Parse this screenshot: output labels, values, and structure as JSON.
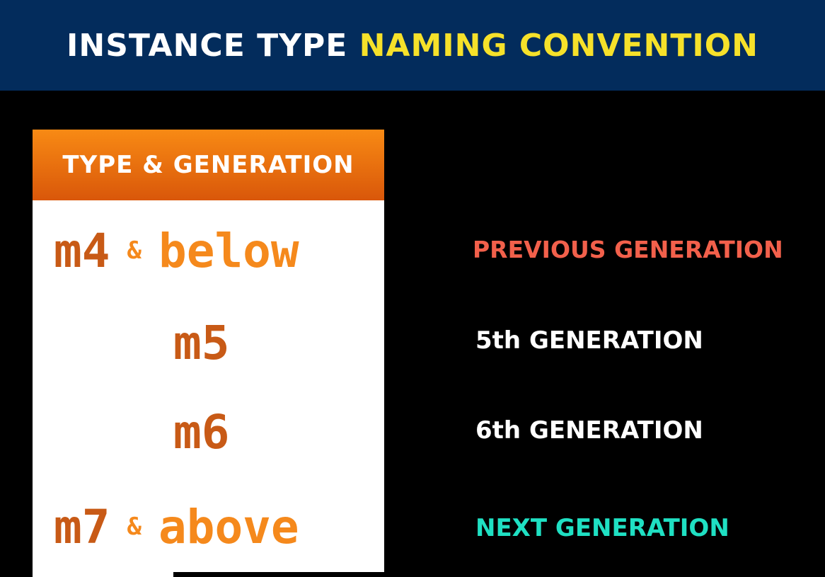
{
  "title": {
    "part1": "INSTANCE TYPE",
    "part2": "NAMING CONVENTION"
  },
  "panel": {
    "header": "TYPE & GENERATION"
  },
  "rows": [
    {
      "type": "m4",
      "amp": "&",
      "word": "below",
      "label": "PREVIOUS GENERATION"
    },
    {
      "type": "m5",
      "label": "5th GENERATION"
    },
    {
      "type": "m6",
      "label": "6th GENERATION"
    },
    {
      "type": "m7",
      "amp": "&",
      "word": "above",
      "label": "NEXT GENERATION"
    }
  ],
  "colors": {
    "banner": "#032c5c",
    "title_accent": "#f6e12a",
    "header_top": "#f88a14",
    "header_bottom": "#d9570a",
    "type_text": "#c85a16",
    "word_text": "#f5891c",
    "previous_label": "#f2604b",
    "next_label": "#1fe0c3"
  }
}
